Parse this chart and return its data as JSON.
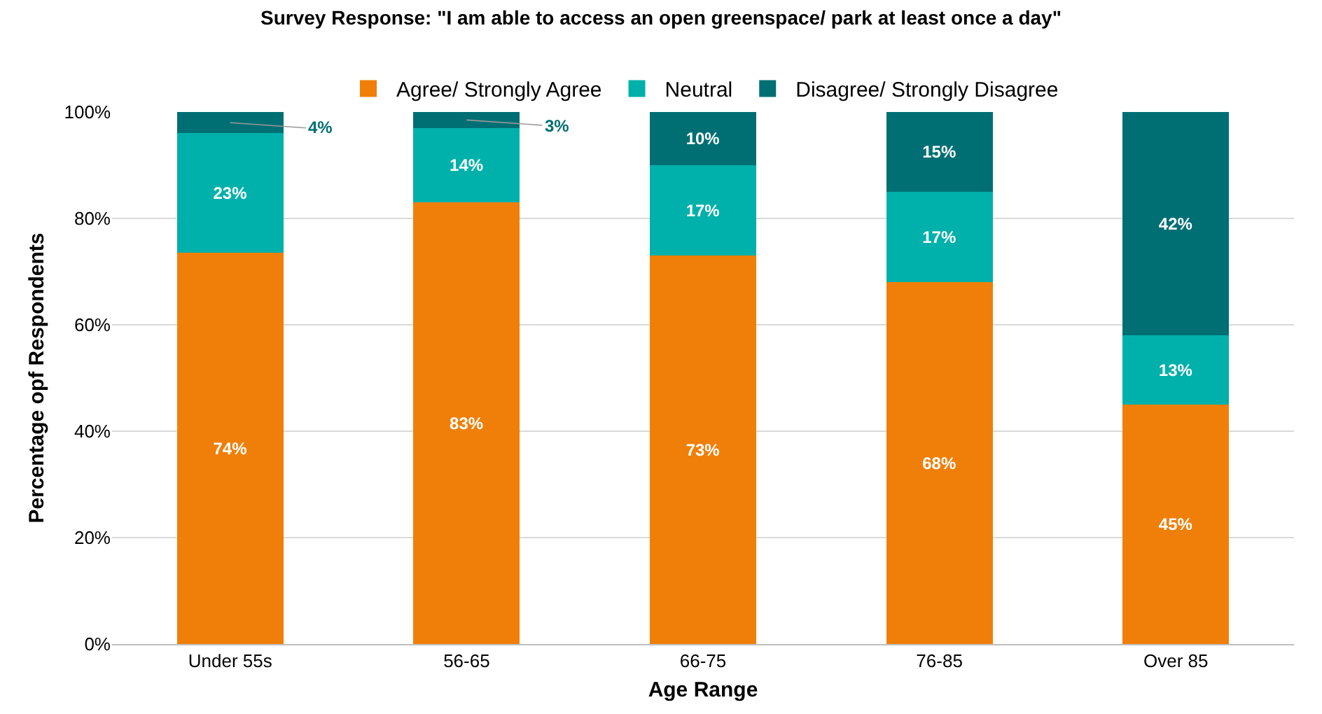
{
  "chart_data": {
    "type": "bar",
    "stacked": true,
    "title": "Survey Response: \"I am able to access an open greenspace/ park at least once a day\"",
    "xlabel": "Age Range",
    "ylabel": "Percentage opf Respondents",
    "categories": [
      "Under 55s",
      "56-65",
      "66-75",
      "76-85",
      "Over 85"
    ],
    "series": [
      {
        "name": "Agree/ Strongly Agree",
        "color": "#f07f09",
        "values": [
          73.5,
          83,
          73,
          68,
          45
        ],
        "value_labels": [
          "74%",
          "83%",
          "73%",
          "68%",
          "45%"
        ]
      },
      {
        "name": "Neutral",
        "color": "#00b0aa",
        "values": [
          22.5,
          14,
          17,
          17,
          13
        ],
        "value_labels": [
          "23%",
          "14%",
          "17%",
          "17%",
          "13%"
        ]
      },
      {
        "name": "Disagree/ Strongly Disagree",
        "color": "#006f74",
        "values": [
          4,
          3,
          10,
          15,
          42
        ],
        "value_labels": [
          "4%",
          "3%",
          "10%",
          "15%",
          "42%"
        ]
      }
    ],
    "ylim": [
      0,
      100
    ],
    "yticks": [
      {
        "value": 0,
        "label": "0%"
      },
      {
        "value": 20,
        "label": "20%"
      },
      {
        "value": 40,
        "label": "40%"
      },
      {
        "value": 60,
        "label": "60%"
      },
      {
        "value": 80,
        "label": "80%"
      },
      {
        "value": 100,
        "label": "100%"
      }
    ],
    "grid": "y",
    "legend": "top"
  }
}
